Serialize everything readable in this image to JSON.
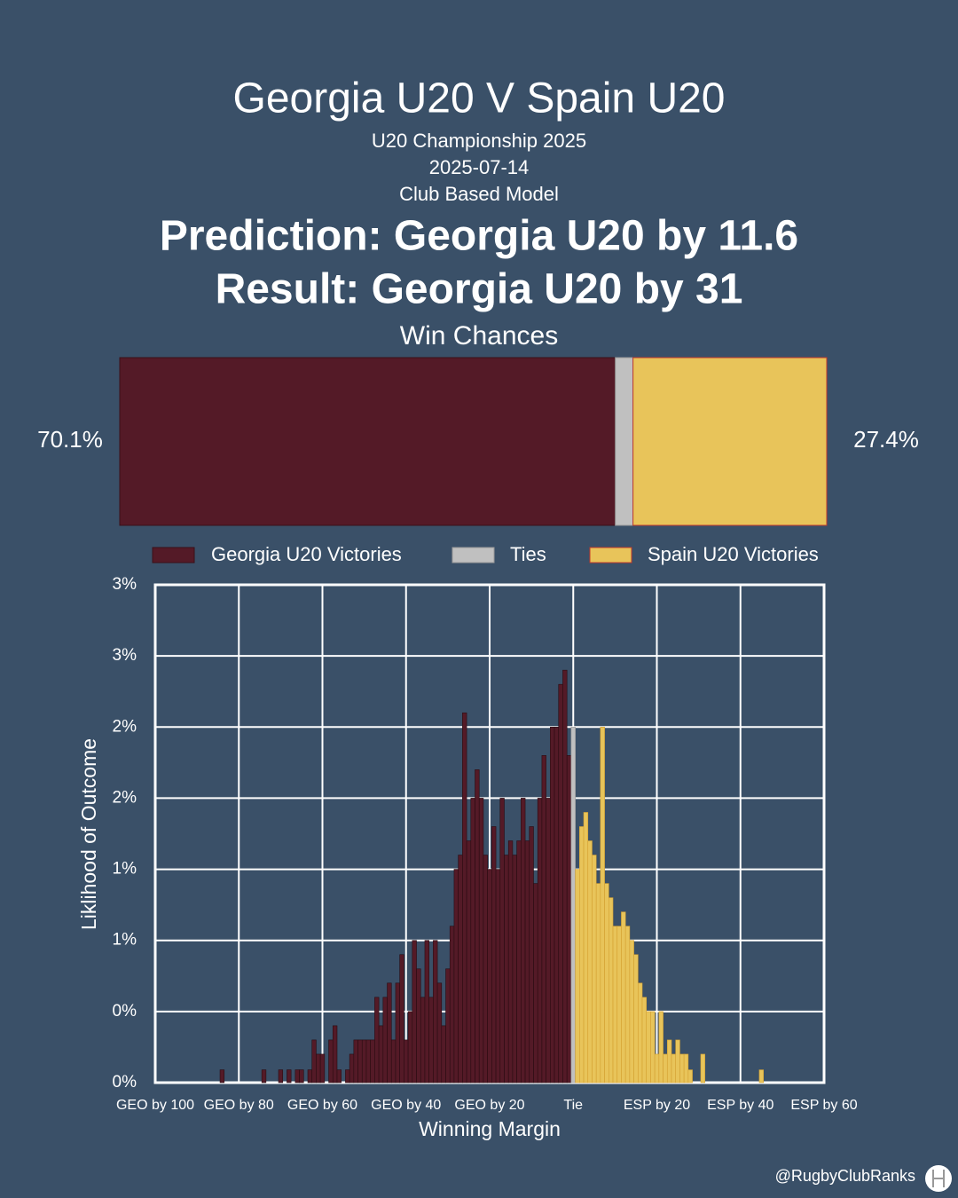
{
  "chart_data": [
    {
      "type": "stacked-bar",
      "title": "Georgia U20 V Spain U20",
      "subtitle": [
        "U20 Championship 2025",
        "2025-07-14",
        "Club Based Model"
      ],
      "annotations": [
        "Prediction: Georgia U20 by 11.6",
        "Result: Georgia U20 by 31"
      ],
      "bar_title": "Win Chances",
      "series": [
        {
          "name": "Georgia U20 Victories",
          "color": "#541a27",
          "values": [
            70.1
          ],
          "value_labels": [
            "70.1%"
          ]
        },
        {
          "name": "Ties",
          "color": "#c0c0c0",
          "values": [
            2.5
          ]
        },
        {
          "name": "Spain U20 Victories",
          "color": "#e8c45a",
          "values": [
            27.4
          ],
          "value_labels": [
            "27.4%"
          ]
        }
      ]
    },
    {
      "type": "bar",
      "xlabel": "Winning Margin",
      "ylabel": "Liklihood of Outcome",
      "xlim": [
        -100,
        60
      ],
      "xticks": [
        {
          "value": -100,
          "label": "GEO by 100"
        },
        {
          "value": -80,
          "label": "GEO by 80"
        },
        {
          "value": -60,
          "label": "GEO by 60"
        },
        {
          "value": -40,
          "label": "GEO by 40"
        },
        {
          "value": -20,
          "label": "GEO by 20"
        },
        {
          "value": 0,
          "label": "Tie"
        },
        {
          "value": 20,
          "label": "ESP by 20"
        },
        {
          "value": 40,
          "label": "ESP by 40"
        },
        {
          "value": 60,
          "label": "ESP by 60"
        }
      ],
      "ylim": [
        0,
        3.5
      ],
      "yticks": [
        {
          "value": 0,
          "label": "0%"
        },
        {
          "value": 0.5,
          "label": "0%"
        },
        {
          "value": 1,
          "label": "1%"
        },
        {
          "value": 1.5,
          "label": "1%"
        },
        {
          "value": 2,
          "label": "2%"
        },
        {
          "value": 2.5,
          "label": "2%"
        },
        {
          "value": 3,
          "label": "3%"
        },
        {
          "value": 3.5,
          "label": "3%"
        }
      ],
      "grid": true,
      "series": [
        {
          "color": "#541a27",
          "x": [
            -84,
            -74,
            -70,
            -68,
            -66,
            -65,
            -63,
            -62,
            -61,
            -60,
            -58,
            -57,
            -56,
            -54,
            -53,
            -52,
            -51,
            -50,
            -49,
            -48,
            -47,
            -46,
            -45,
            -44,
            -43,
            -42,
            -41,
            -40,
            -39,
            -38,
            -37,
            -36,
            -35,
            -34,
            -33,
            -32,
            -31,
            -30,
            -29,
            -28,
            -27,
            -26,
            -25,
            -24,
            -23,
            -22,
            -21,
            -20,
            -19,
            -18,
            -17,
            -16,
            -15,
            -14,
            -13,
            -12,
            -11,
            -10,
            -9,
            -8,
            -7,
            -6,
            -5,
            -4,
            -3,
            -2,
            -1
          ],
          "values": [
            0.09,
            0.09,
            0.09,
            0.09,
            0.09,
            0.09,
            0.09,
            0.3,
            0.2,
            0.2,
            0.3,
            0.4,
            0.09,
            0.09,
            0.2,
            0.3,
            0.3,
            0.3,
            0.3,
            0.3,
            0.6,
            0.4,
            0.6,
            0.7,
            0.3,
            0.7,
            0.9,
            0.3,
            0.5,
            1.0,
            0.8,
            0.6,
            1.0,
            0.6,
            1.0,
            0.7,
            0.4,
            0.8,
            1.1,
            1.5,
            1.6,
            2.6,
            1.7,
            2.0,
            2.2,
            2.0,
            1.6,
            1.5,
            1.8,
            1.5,
            2.0,
            1.6,
            1.7,
            1.6,
            1.7,
            2.0,
            1.7,
            1.8,
            1.4,
            2.0,
            2.3,
            2.0,
            2.5,
            2.5,
            2.8,
            2.9,
            2.3
          ]
        },
        {
          "color": "#c0c0c0",
          "x": [
            0
          ],
          "values": [
            2.5
          ]
        },
        {
          "color": "#e8c45a",
          "x": [
            1,
            2,
            3,
            4,
            5,
            6,
            7,
            8,
            9,
            10,
            11,
            12,
            13,
            14,
            15,
            16,
            17,
            18,
            19,
            20,
            21,
            22,
            23,
            24,
            25,
            26,
            27,
            28,
            31,
            45
          ],
          "values": [
            1.5,
            1.8,
            1.9,
            1.7,
            1.6,
            1.4,
            2.5,
            1.4,
            1.3,
            1.1,
            1.1,
            1.2,
            1.1,
            1.0,
            0.9,
            0.7,
            0.6,
            0.5,
            0.5,
            0.2,
            0.5,
            0.2,
            0.3,
            0.2,
            0.3,
            0.2,
            0.2,
            0.09,
            0.2,
            0.09
          ]
        }
      ]
    }
  ],
  "footer": "@RugbyClubRanks"
}
